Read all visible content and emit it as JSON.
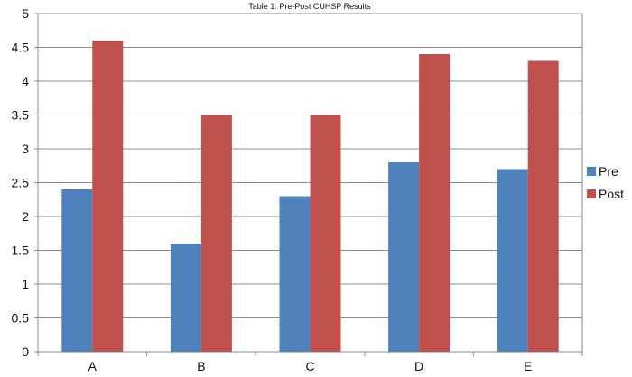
{
  "chart_data": {
    "type": "bar",
    "title": "Table 1: Pre-Post CUHSP Results",
    "categories": [
      "A",
      "B",
      "C",
      "D",
      "E"
    ],
    "series": [
      {
        "name": "Pre",
        "values": [
          2.4,
          1.6,
          2.3,
          2.8,
          2.7
        ],
        "color": "#4F81BD"
      },
      {
        "name": "Post",
        "values": [
          4.6,
          3.5,
          3.5,
          4.4,
          4.3
        ],
        "color": "#C0504D"
      }
    ],
    "ylim": [
      0,
      5
    ],
    "yticks": [
      "0",
      "0.5",
      "1",
      "1.5",
      "2",
      "2.5",
      "3",
      "3.5",
      "4",
      "4.5",
      "5"
    ],
    "grid": true,
    "legend_position": "right"
  }
}
